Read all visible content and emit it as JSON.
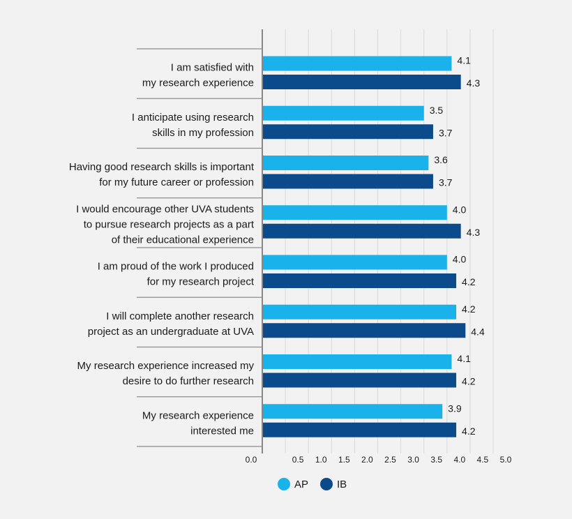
{
  "chart_data": {
    "type": "bar",
    "orientation": "horizontal",
    "title": "",
    "xlabel": "",
    "ylabel": "",
    "xlim": [
      0,
      5
    ],
    "x_ticks": [
      "0.0",
      "0.5",
      "1.0",
      "1.5",
      "2.0",
      "2.5",
      "3.0",
      "3.5",
      "4.0",
      "4.5",
      "5.0"
    ],
    "grid": true,
    "legend_position": "bottom",
    "categories": [
      [
        "I am satisfied with",
        "my research experience"
      ],
      [
        "I anticipate using research",
        "skills in my profession"
      ],
      [
        "Having good research skills is important",
        "for my future career or profession"
      ],
      [
        "I would encourage other UVA students",
        "to pursue research projects as a part",
        "of their educational experience"
      ],
      [
        "I am proud of the work I produced",
        "for my research project"
      ],
      [
        "I will complete another research",
        "project as an undergraduate at UVA"
      ],
      [
        "My research experience increased my",
        "desire to do further research"
      ],
      [
        "My research experience",
        "interested me"
      ]
    ],
    "series": [
      {
        "name": "AP",
        "color": "#1ab2ea",
        "values": [
          4.1,
          3.5,
          3.6,
          4.0,
          4.0,
          4.2,
          4.1,
          3.9
        ],
        "labels": [
          "4.1",
          "3.5",
          "3.6",
          "4.0",
          "4.0",
          "4.2",
          "4.1",
          "3.9"
        ]
      },
      {
        "name": "IB",
        "color": "#0b4a8b",
        "values": [
          4.3,
          3.7,
          3.7,
          4.3,
          4.2,
          4.4,
          4.2,
          4.2
        ],
        "labels": [
          "4.3",
          "3.7",
          "3.7",
          "4.3",
          "4.2",
          "4.4",
          "4.2",
          "4.2"
        ]
      }
    ]
  }
}
